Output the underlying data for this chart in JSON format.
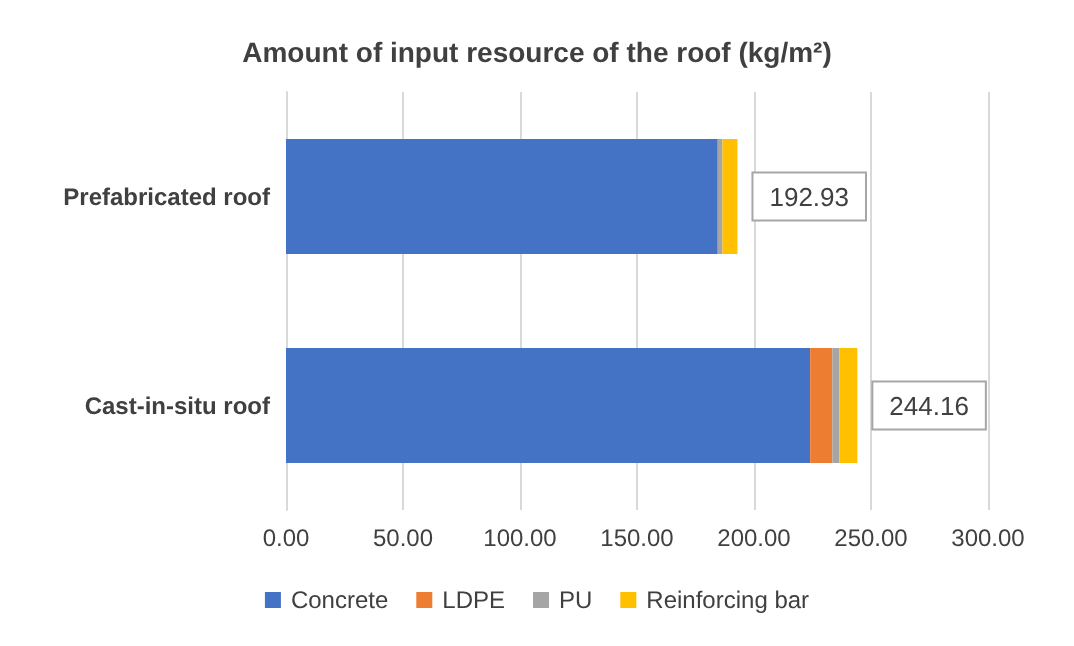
{
  "chart_data": {
    "type": "bar",
    "orientation": "horizontal",
    "stacked": true,
    "title": "Amount of input resource of the roof (kg/m²)",
    "categories": [
      "Prefabricated roof",
      "Cast-in-situ roof"
    ],
    "series": [
      {
        "name": "Concrete",
        "color": "#4472c4",
        "values": [
          184.5,
          224
        ]
      },
      {
        "name": "LDPE",
        "color": "#ed7d31",
        "values": [
          0,
          9.5
        ]
      },
      {
        "name": "PU",
        "color": "#a5a5a5",
        "values": [
          2,
          3
        ]
      },
      {
        "name": "Reinforcing bar",
        "color": "#ffc000",
        "values": [
          6.43,
          7.66
        ]
      }
    ],
    "totals": [
      "192.93",
      "244.16"
    ],
    "xlim": [
      0,
      300
    ],
    "xticks": [
      {
        "value": 0,
        "label": "0.00"
      },
      {
        "value": 50,
        "label": "50.00"
      },
      {
        "value": 100,
        "label": "100.00"
      },
      {
        "value": 150,
        "label": "150.00"
      },
      {
        "value": 200,
        "label": "200.00"
      },
      {
        "value": 250,
        "label": "250.00"
      },
      {
        "value": 300,
        "label": "300.00"
      }
    ],
    "grid": "x",
    "legend": "bottom"
  }
}
